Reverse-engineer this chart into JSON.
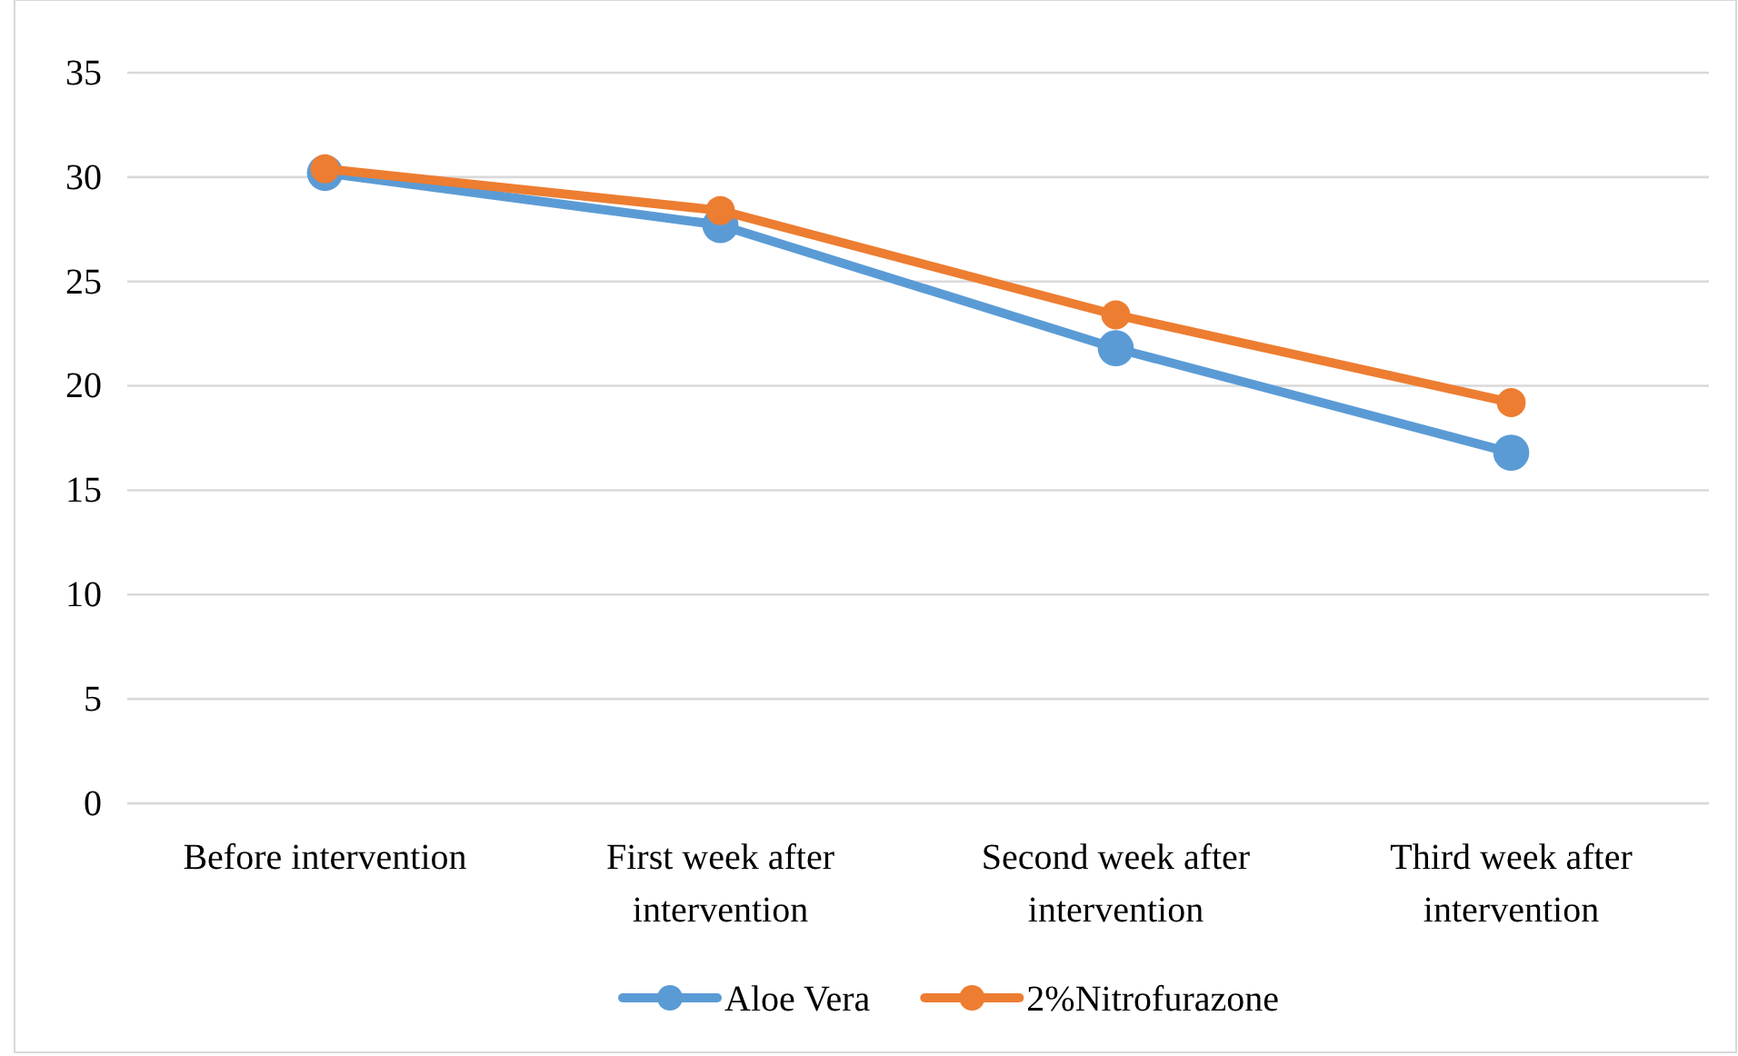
{
  "chart_data": {
    "type": "line",
    "categories": [
      "Before intervention",
      "First week after intervention",
      "Second week after intervention",
      "Third week after intervention"
    ],
    "series": [
      {
        "name": "Aloe Vera",
        "color": "#5b9bd5",
        "values": [
          30.2,
          27.7,
          21.8,
          16.8
        ]
      },
      {
        "name": "2%Nitrofurazone",
        "color": "#ed7d31",
        "values": [
          30.4,
          28.4,
          23.4,
          19.2
        ]
      }
    ],
    "ylim": [
      0,
      35
    ],
    "yticks": [
      0,
      5,
      10,
      15,
      20,
      25,
      30,
      35
    ],
    "grid": "y",
    "legend": "bottom",
    "marker": "circle",
    "line_style": "solid"
  }
}
